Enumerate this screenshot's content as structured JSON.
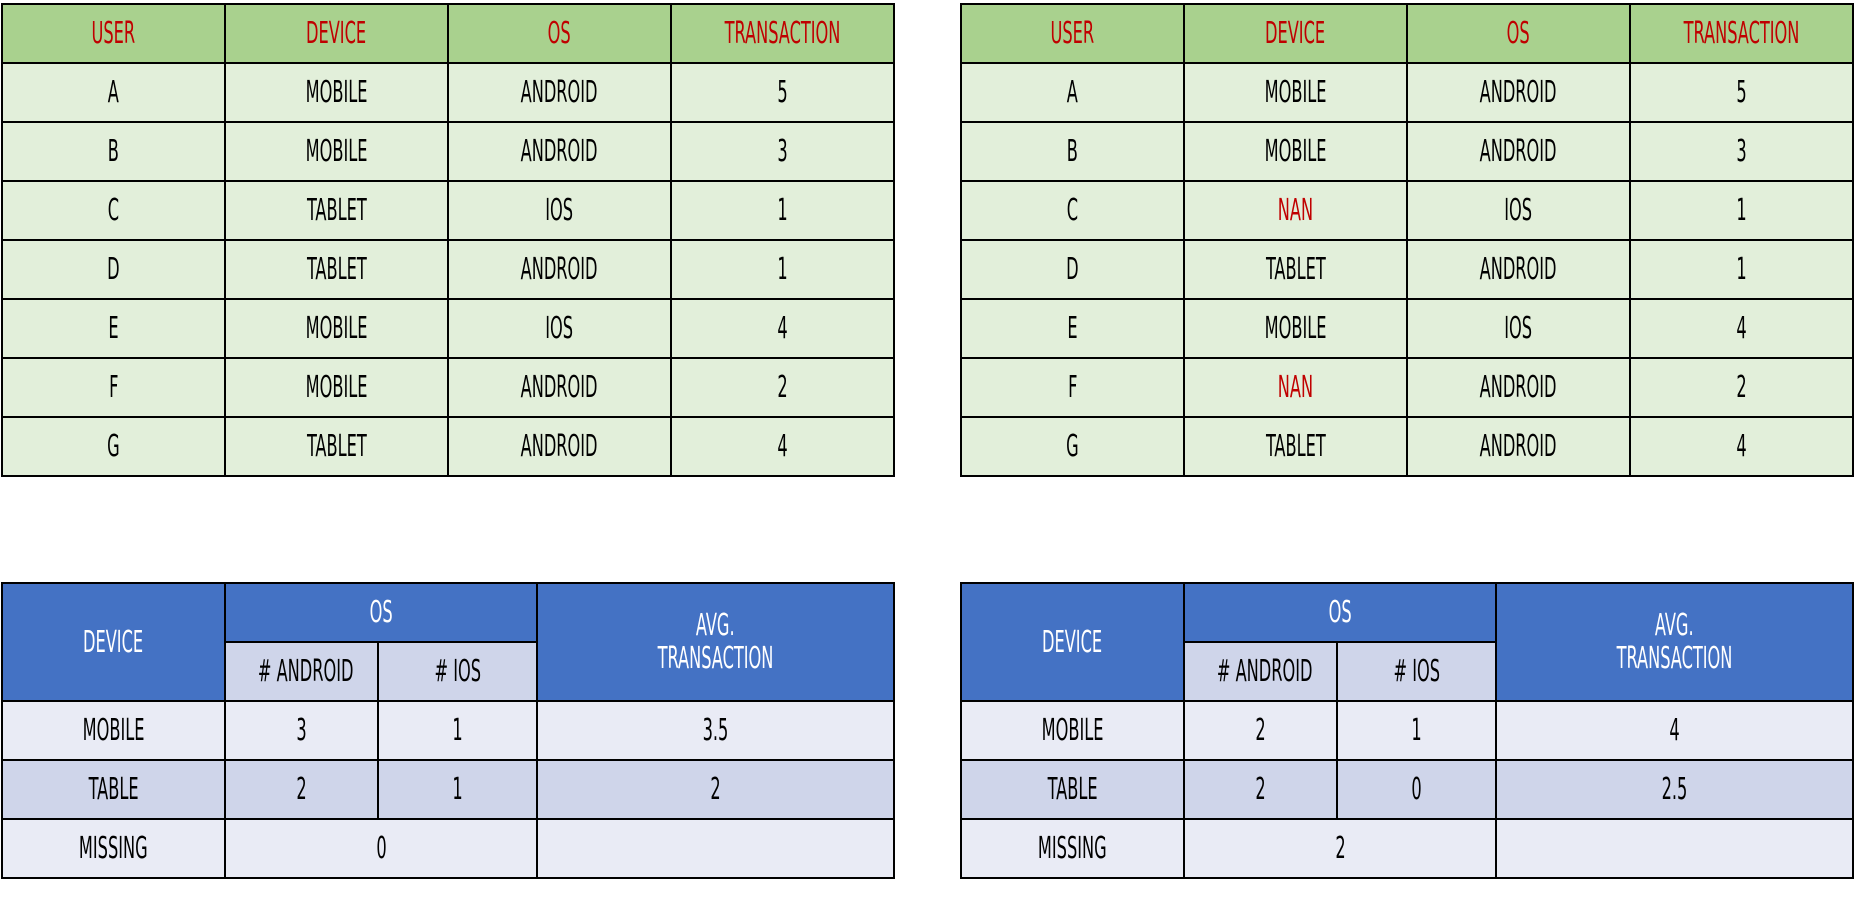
{
  "raw_headers": [
    "USER",
    "DEVICE",
    "OS",
    "TRANSACTION"
  ],
  "raw_left": {
    "rows": [
      [
        "A",
        "MOBILE",
        "ANDROID",
        "5"
      ],
      [
        "B",
        "MOBILE",
        "ANDROID",
        "3"
      ],
      [
        "C",
        "TABLET",
        "IOS",
        "1"
      ],
      [
        "D",
        "TABLET",
        "ANDROID",
        "1"
      ],
      [
        "E",
        "MOBILE",
        "IOS",
        "4"
      ],
      [
        "F",
        "MOBILE",
        "ANDROID",
        "2"
      ],
      [
        "G",
        "TABLET",
        "ANDROID",
        "4"
      ]
    ]
  },
  "raw_right": {
    "rows": [
      [
        "A",
        "MOBILE",
        "ANDROID",
        "5"
      ],
      [
        "B",
        "MOBILE",
        "ANDROID",
        "3"
      ],
      [
        "C",
        "NAN",
        "IOS",
        "1"
      ],
      [
        "D",
        "TABLET",
        "ANDROID",
        "1"
      ],
      [
        "E",
        "MOBILE",
        "IOS",
        "4"
      ],
      [
        "F",
        "NAN",
        "ANDROID",
        "2"
      ],
      [
        "G",
        "TABLET",
        "ANDROID",
        "4"
      ]
    ]
  },
  "summary_headers": {
    "device": "DEVICE",
    "os": "OS",
    "android": "# ANDROID",
    "ios": "# IOS",
    "avg_line1": "AVG.",
    "avg_line2": "TRANSACTION"
  },
  "summary_left": {
    "mobile": {
      "label": "MOBILE",
      "android": "3",
      "ios": "1",
      "avg": "3.5"
    },
    "table": {
      "label": "TABLE",
      "android": "2",
      "ios": "1",
      "avg": "2"
    },
    "missing": {
      "label": "MISSING",
      "count": "0",
      "avg": ""
    }
  },
  "summary_right": {
    "mobile": {
      "label": "MOBILE",
      "android": "2",
      "ios": "1",
      "avg": "4"
    },
    "table": {
      "label": "TABLE",
      "android": "2",
      "ios": "0",
      "avg": "2.5"
    },
    "missing": {
      "label": "MISSING",
      "count": "2",
      "avg": ""
    }
  },
  "colors": {
    "raw_header_bg": "#a9d18e",
    "raw_header_text": "#c00000",
    "raw_cell_bg": "#e2efda",
    "missing_text": "#c00000",
    "summary_header_bg": "#4472c4",
    "summary_sub_bg": "#cfd5ea",
    "summary_row_light": "#e9ebf5"
  }
}
